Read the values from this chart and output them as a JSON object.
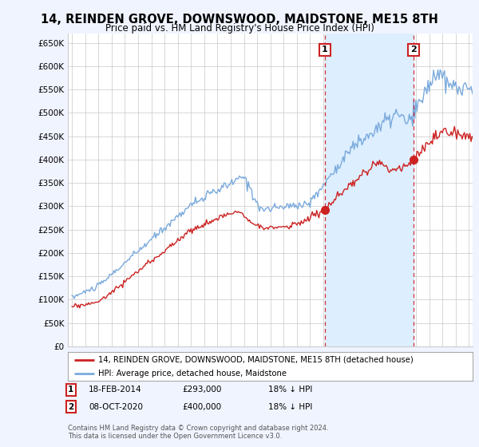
{
  "title": "14, REINDEN GROVE, DOWNSWOOD, MAIDSTONE, ME15 8TH",
  "subtitle": "Price paid vs. HM Land Registry's House Price Index (HPI)",
  "ylim": [
    0,
    670000
  ],
  "yticks": [
    0,
    50000,
    100000,
    150000,
    200000,
    250000,
    300000,
    350000,
    400000,
    450000,
    500000,
    550000,
    600000,
    650000
  ],
  "ytick_labels": [
    "£0",
    "£50K",
    "£100K",
    "£150K",
    "£200K",
    "£250K",
    "£300K",
    "£350K",
    "£400K",
    "£450K",
    "£500K",
    "£550K",
    "£600K",
    "£650K"
  ],
  "xlim_start": 1994.7,
  "xlim_end": 2025.3,
  "hpi_color": "#7aaadd",
  "price_color": "#cc2222",
  "shade_color": "#ddeeff",
  "transaction1_date": 2014.12,
  "transaction1_price": 293000,
  "transaction2_date": 2020.83,
  "transaction2_price": 400000,
  "legend_price_label": "14, REINDEN GROVE, DOWNSWOOD, MAIDSTONE, ME15 8TH (detached house)",
  "legend_hpi_label": "HPI: Average price, detached house, Maidstone",
  "footer": "Contains HM Land Registry data © Crown copyright and database right 2024.\nThis data is licensed under the Open Government Licence v3.0.",
  "background_color": "#f0f4ff",
  "plot_bg_color": "#ffffff",
  "title_fontsize": 10.5,
  "subtitle_fontsize": 8.5
}
